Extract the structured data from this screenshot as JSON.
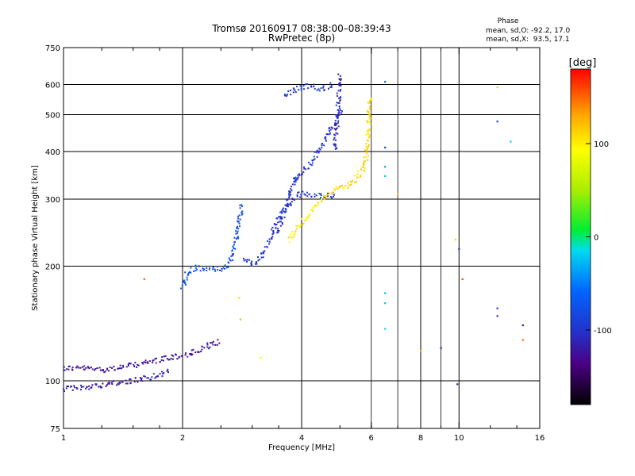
{
  "chart_data": {
    "type": "scatter",
    "title": "Tromsø 20160917 08:38:00–08:39:43",
    "subtitle": "RwPretec (8p)",
    "phase_box": {
      "heading": "Phase",
      "line_o": "mean, sd,O: -92.2, 17.0",
      "line_x": "mean, sd,X:  93.5, 17.1"
    },
    "xlabel": "Frequency [MHz]",
    "ylabel": "Stationary phase Virtual Height [km]",
    "x_scale": "log",
    "y_scale": "log",
    "xlim": [
      1,
      16
    ],
    "ylim": [
      75,
      750
    ],
    "x_ticks": [
      1,
      2,
      4,
      6,
      8,
      10,
      16
    ],
    "x_tick_labels": [
      "1",
      "2",
      "4",
      "6",
      "8",
      "10",
      "16"
    ],
    "x_major_grid": [
      2,
      4,
      8,
      10
    ],
    "x_minor_ticks": [
      1.25,
      1.5,
      1.75,
      2.5,
      3,
      3.5,
      5,
      6,
      7,
      9,
      12,
      14
    ],
    "x_minor_grid": [
      6,
      7,
      9
    ],
    "y_ticks": [
      75,
      100,
      200,
      300,
      400,
      500,
      600,
      750
    ],
    "y_tick_labels": [
      "75",
      "100",
      "200",
      "300",
      "400",
      "500",
      "600",
      "750"
    ],
    "grid": true,
    "colorbar": {
      "label": "[deg]",
      "min": -180,
      "max": 180,
      "ticks": [
        -100,
        0,
        100
      ],
      "tick_labels": [
        "-100",
        "0",
        "100"
      ],
      "position": "right"
    },
    "traces": [
      {
        "x": [
          1.0,
          1.1,
          1.25,
          1.45,
          1.65,
          1.85,
          2.05,
          2.2,
          2.35,
          2.5
        ],
        "y": [
          108,
          108,
          107,
          109,
          112,
          115,
          117,
          120,
          124,
          127
        ],
        "phase": -125
      },
      {
        "x": [
          1.0,
          1.1,
          1.3,
          1.5,
          1.7,
          1.85
        ],
        "y": [
          95,
          96,
          98,
          100,
          103,
          106
        ],
        "phase": -118
      },
      {
        "x": [
          2.0,
          2.05,
          2.15,
          2.3,
          2.5,
          2.65
        ],
        "y": [
          175,
          190,
          198,
          196,
          197,
          202
        ],
        "phase": -75
      },
      {
        "x": [
          2.65,
          2.72,
          2.78,
          2.82
        ],
        "y": [
          205,
          230,
          260,
          292
        ],
        "phase": -80
      },
      {
        "x": [
          2.85,
          3.0,
          3.1,
          3.3,
          3.5,
          3.8,
          4.0,
          4.3,
          4.6,
          4.9
        ],
        "y": [
          210,
          202,
          205,
          230,
          270,
          300,
          310,
          305,
          305,
          308
        ],
        "phase": -100
      },
      {
        "x": [
          3.5,
          3.6,
          3.7,
          3.8,
          3.9
        ],
        "y": [
          245,
          275,
          300,
          325,
          348
        ],
        "phase": -98
      },
      {
        "x": [
          3.8,
          4.1,
          4.35,
          4.6,
          4.85,
          5.05
        ],
        "y": [
          335,
          360,
          390,
          430,
          475,
          520
        ],
        "phase": -100
      },
      {
        "x": [
          3.6,
          3.8,
          4.0,
          4.2,
          4.4,
          4.6,
          4.8
        ],
        "y": [
          560,
          580,
          590,
          592,
          588,
          585,
          600
        ],
        "phase": -95
      },
      {
        "x": [
          4.85,
          4.92,
          4.97,
          5.0
        ],
        "y": [
          400,
          480,
          560,
          640
        ],
        "phase": -110
      },
      {
        "x": [
          3.7,
          3.85,
          4.0,
          4.2,
          4.4,
          4.6
        ],
        "y": [
          235,
          245,
          260,
          275,
          290,
          305
        ],
        "phase": 100
      },
      {
        "x": [
          4.6,
          4.9,
          5.2,
          5.5,
          5.75,
          5.85,
          5.9,
          5.95
        ],
        "y": [
          310,
          318,
          325,
          340,
          360,
          400,
          460,
          560
        ],
        "phase": 110
      }
    ],
    "scatter_points": [
      {
        "x": 1.6,
        "y": 185,
        "phase": 150
      },
      {
        "x": 2.78,
        "y": 165,
        "phase": 110
      },
      {
        "x": 2.8,
        "y": 145,
        "phase": 40
      },
      {
        "x": 3.15,
        "y": 115,
        "phase": 90
      },
      {
        "x": 6.5,
        "y": 610,
        "phase": -60
      },
      {
        "x": 6.5,
        "y": 410,
        "phase": -90
      },
      {
        "x": 6.5,
        "y": 365,
        "phase": -40
      },
      {
        "x": 6.5,
        "y": 345,
        "phase": -20
      },
      {
        "x": 6.5,
        "y": 170,
        "phase": -30
      },
      {
        "x": 6.5,
        "y": 160,
        "phase": -20
      },
      {
        "x": 6.5,
        "y": 137,
        "phase": -10
      },
      {
        "x": 7.0,
        "y": 310,
        "phase": 120
      },
      {
        "x": 8.0,
        "y": 120,
        "phase": 130
      },
      {
        "x": 9.0,
        "y": 122,
        "phase": -110
      },
      {
        "x": 9.8,
        "y": 235,
        "phase": 60
      },
      {
        "x": 10.0,
        "y": 222,
        "phase": -100
      },
      {
        "x": 10.2,
        "y": 185,
        "phase": 160
      },
      {
        "x": 9.9,
        "y": 98,
        "phase": -120
      },
      {
        "x": 12.5,
        "y": 590,
        "phase": 60
      },
      {
        "x": 12.5,
        "y": 480,
        "phase": -95
      },
      {
        "x": 13.5,
        "y": 425,
        "phase": -20
      },
      {
        "x": 12.5,
        "y": 155,
        "phase": -100
      },
      {
        "x": 12.5,
        "y": 148,
        "phase": -110
      },
      {
        "x": 14.5,
        "y": 140,
        "phase": -130
      },
      {
        "x": 14.5,
        "y": 128,
        "phase": 150
      }
    ]
  }
}
